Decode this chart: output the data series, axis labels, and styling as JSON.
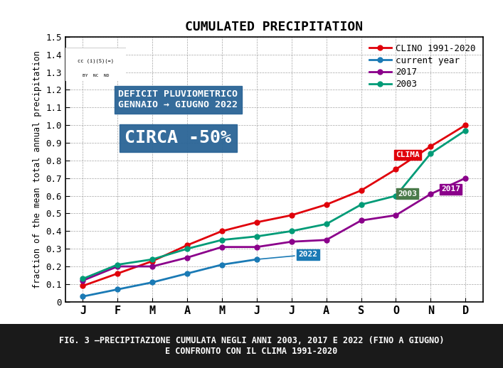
{
  "title": "CUMULATED PRECIPITATION",
  "ylabel": "fraction of the mean total annual precipitation",
  "xlabel_months": [
    "J",
    "F",
    "M",
    "A",
    "M",
    "J",
    "J",
    "A",
    "S",
    "O",
    "N",
    "D"
  ],
  "ylim": [
    0,
    1.5
  ],
  "yticks": [
    0,
    0.1,
    0.2,
    0.3,
    0.4,
    0.5,
    0.6,
    0.7,
    0.8,
    0.9,
    1.0,
    1.1,
    1.2,
    1.3,
    1.4,
    1.5
  ],
  "clino": [
    0.09,
    0.16,
    0.23,
    0.32,
    0.4,
    0.45,
    0.49,
    0.55,
    0.63,
    0.75,
    0.88,
    1.0
  ],
  "current_year": [
    0.03,
    0.07,
    0.11,
    0.16,
    0.21,
    0.24,
    null,
    null,
    null,
    null,
    null,
    null
  ],
  "y2017": [
    0.12,
    0.2,
    0.2,
    0.25,
    0.31,
    0.31,
    0.34,
    0.35,
    0.46,
    0.49,
    0.61,
    0.7
  ],
  "y2003": [
    0.13,
    0.21,
    0.24,
    0.3,
    0.35,
    0.37,
    0.4,
    0.44,
    0.55,
    0.6,
    0.84,
    0.97
  ],
  "color_clino": "#e0000a",
  "color_current": "#1a7ab5",
  "color_2017": "#8b008b",
  "color_2003": "#009b77",
  "footer_bg": "#1a1a1a",
  "footer_text": "FIG. 3 –PRECIPITAZIONE CUMULATA NEGLI ANNI 2003, 2017 E 2022 (FINO A GIUGNO)\nE CONFRONTO CON IL CLIMA 1991-2020",
  "box_text1": "DEFICIT PLUVIOMETRICO\nGENNAIO → GIUGNO 2022",
  "box_text2": "CIRCA -50%",
  "annotation_2022": "2022",
  "annotation_clima": "CLIMA",
  "annotation_2003": "2003",
  "annotation_2017": "2017"
}
